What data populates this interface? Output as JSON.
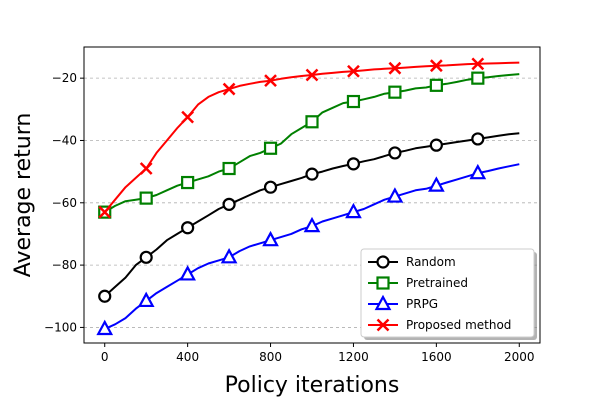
{
  "chart_data": {
    "type": "line",
    "xlabel": "Policy iterations",
    "ylabel": "Average return",
    "xlim": [
      -100,
      2100
    ],
    "ylim": [
      -105,
      -10
    ],
    "xticks": [
      0,
      400,
      800,
      1200,
      1600,
      2000
    ],
    "yticks": [
      -100,
      -80,
      -60,
      -40,
      -20
    ],
    "grid": {
      "y": true,
      "x": false,
      "style": "dashed"
    },
    "legend_position": "lower-right",
    "series": [
      {
        "name": "Random",
        "color": "#000000",
        "marker": "circle",
        "x": [
          0,
          50,
          100,
          150,
          200,
          250,
          300,
          350,
          400,
          450,
          500,
          550,
          600,
          650,
          700,
          750,
          800,
          850,
          900,
          950,
          1000,
          1050,
          1100,
          1150,
          1200,
          1250,
          1300,
          1350,
          1400,
          1450,
          1500,
          1550,
          1600,
          1650,
          1700,
          1750,
          1800,
          1850,
          1900,
          1950,
          2000
        ],
        "y": [
          -90,
          -87,
          -84,
          -80,
          -77.5,
          -75,
          -72,
          -70,
          -68,
          -66,
          -64,
          -62,
          -60.5,
          -59,
          -57.5,
          -56,
          -55,
          -54,
          -53,
          -52,
          -50.8,
          -50,
          -49,
          -48.2,
          -47.5,
          -46.7,
          -46,
          -45,
          -44,
          -43.3,
          -42.5,
          -42,
          -41.5,
          -41,
          -40.5,
          -40,
          -39.5,
          -39,
          -38.5,
          -38,
          -37.7
        ],
        "marker_x": [
          0,
          200,
          400,
          600,
          800,
          1000,
          1200,
          1400,
          1600,
          1800
        ],
        "marker_y": [
          -90,
          -77.5,
          -68,
          -60.5,
          -55,
          -50.8,
          -47.5,
          -44,
          -41.5,
          -39.5
        ]
      },
      {
        "name": "Pretrained",
        "color": "#008000",
        "marker": "square",
        "x": [
          0,
          50,
          100,
          150,
          200,
          250,
          300,
          350,
          400,
          450,
          500,
          550,
          600,
          650,
          700,
          750,
          800,
          850,
          900,
          950,
          1000,
          1050,
          1100,
          1150,
          1200,
          1250,
          1300,
          1350,
          1400,
          1450,
          1500,
          1550,
          1600,
          1650,
          1700,
          1750,
          1800,
          1850,
          1900,
          1950,
          2000
        ],
        "y": [
          -63,
          -61,
          -59.5,
          -59,
          -58.5,
          -57.5,
          -56,
          -54.5,
          -53.5,
          -52.5,
          -51.5,
          -50,
          -49,
          -47,
          -45,
          -44,
          -42.5,
          -41,
          -38,
          -36,
          -34,
          -31,
          -29.5,
          -28,
          -27.5,
          -26.8,
          -26,
          -25,
          -24.5,
          -24,
          -23.3,
          -23,
          -22.3,
          -21.8,
          -21.2,
          -20.5,
          -20,
          -19.7,
          -19.3,
          -19,
          -18.7
        ],
        "marker_x": [
          0,
          200,
          400,
          600,
          800,
          1000,
          1200,
          1400,
          1600,
          1800
        ],
        "marker_y": [
          -63,
          -58.5,
          -53.5,
          -49,
          -42.5,
          -34,
          -27.5,
          -24.5,
          -22.3,
          -20
        ]
      },
      {
        "name": "PRPG",
        "color": "#0000ff",
        "marker": "triangle",
        "x": [
          0,
          50,
          100,
          150,
          200,
          250,
          300,
          350,
          400,
          450,
          500,
          550,
          600,
          650,
          700,
          750,
          800,
          850,
          900,
          950,
          1000,
          1050,
          1100,
          1150,
          1200,
          1250,
          1300,
          1350,
          1400,
          1450,
          1500,
          1550,
          1600,
          1650,
          1700,
          1750,
          1800,
          1850,
          1900,
          1950,
          2000
        ],
        "y": [
          -100.5,
          -99,
          -97,
          -94,
          -91.5,
          -89,
          -87,
          -85,
          -83,
          -81,
          -79.5,
          -78.5,
          -77.5,
          -75.5,
          -74,
          -73,
          -72,
          -71,
          -70,
          -68.5,
          -67.5,
          -66,
          -65,
          -64,
          -63,
          -62,
          -60.5,
          -59,
          -58,
          -57,
          -56,
          -55.5,
          -54.5,
          -53.5,
          -52.5,
          -51.5,
          -50.5,
          -49.8,
          -49,
          -48.3,
          -47.6
        ],
        "marker_x": [
          0,
          200,
          400,
          600,
          800,
          1000,
          1200,
          1400,
          1600,
          1800
        ],
        "marker_y": [
          -100.5,
          -91.5,
          -83,
          -77.5,
          -72,
          -67.5,
          -63,
          -58,
          -54.5,
          -50.5
        ]
      },
      {
        "name": "Proposed method",
        "color": "#ff0000",
        "marker": "x",
        "x": [
          0,
          50,
          100,
          150,
          200,
          250,
          300,
          350,
          400,
          450,
          500,
          550,
          600,
          650,
          700,
          750,
          800,
          850,
          900,
          950,
          1000,
          1050,
          1100,
          1150,
          1200,
          1250,
          1300,
          1350,
          1400,
          1450,
          1500,
          1550,
          1600,
          1650,
          1700,
          1750,
          1800,
          1850,
          1900,
          1950,
          2000
        ],
        "y": [
          -63,
          -59,
          -55,
          -52,
          -49,
          -44,
          -40,
          -36,
          -32.5,
          -28.5,
          -26,
          -24.5,
          -23.5,
          -22.5,
          -21.8,
          -21.2,
          -20.8,
          -20.2,
          -19.7,
          -19.3,
          -19,
          -18.6,
          -18.3,
          -18,
          -17.8,
          -17.5,
          -17.2,
          -17,
          -16.8,
          -16.6,
          -16.4,
          -16.2,
          -16,
          -15.9,
          -15.7,
          -15.5,
          -15.4,
          -15.3,
          -15.2,
          -15.1,
          -15
        ],
        "marker_x": [
          0,
          200,
          400,
          600,
          800,
          1000,
          1200,
          1400,
          1600,
          1800
        ],
        "marker_y": [
          -63,
          -49,
          -32.5,
          -23.5,
          -20.8,
          -19,
          -17.8,
          -16.8,
          -16,
          -15.4
        ]
      }
    ]
  }
}
